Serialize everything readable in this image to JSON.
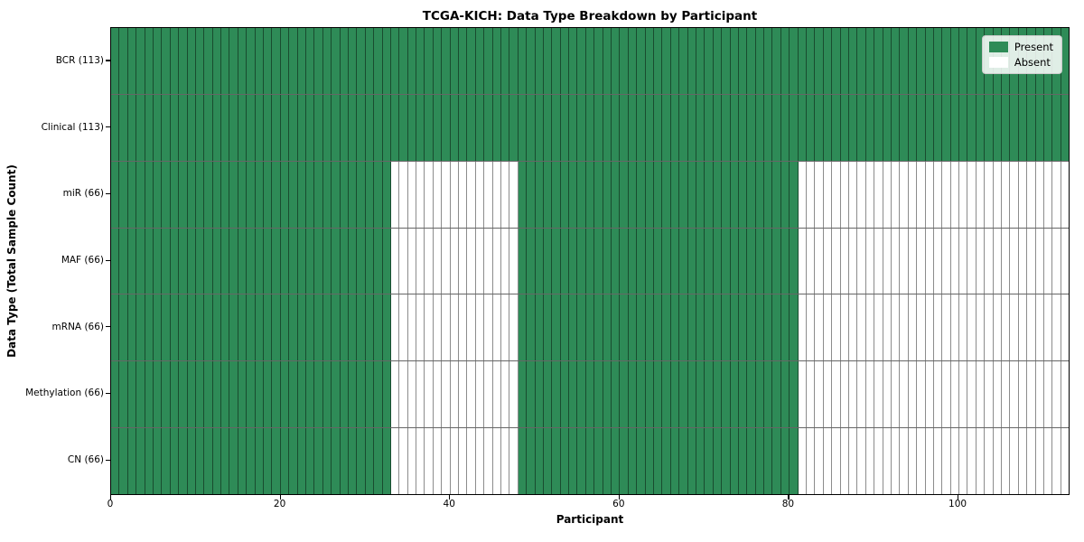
{
  "figure": {
    "title": "TCGA-KICH: Data Type Breakdown by Participant",
    "xlabel": "Participant",
    "ylabel": "Data Type (Total Sample Count)"
  },
  "legend": {
    "items": [
      {
        "label": "Present",
        "color": "#2e8b57"
      },
      {
        "label": "Absent",
        "color": "#ffffff"
      }
    ]
  },
  "chart_data": {
    "type": "heatmap",
    "title": "TCGA-KICH: Data Type Breakdown by Participant",
    "xlabel": "Participant",
    "ylabel": "Data Type (Total Sample Count)",
    "x_range": [
      0,
      113
    ],
    "n_participants": 113,
    "x_ticks": [
      0,
      20,
      40,
      60,
      80,
      100
    ],
    "grid": false,
    "legend_position": "upper right",
    "colors": {
      "present": "#2e8b57",
      "absent": "#ffffff"
    },
    "rows": [
      {
        "label": "BCR (113)",
        "present_count": 113,
        "present_segments": [
          [
            0,
            113
          ]
        ]
      },
      {
        "label": "Clinical (113)",
        "present_count": 113,
        "present_segments": [
          [
            0,
            113
          ]
        ]
      },
      {
        "label": "miR (66)",
        "present_count": 66,
        "present_segments": [
          [
            0,
            33
          ],
          [
            48,
            81
          ]
        ]
      },
      {
        "label": "MAF (66)",
        "present_count": 66,
        "present_segments": [
          [
            0,
            33
          ],
          [
            48,
            81
          ]
        ]
      },
      {
        "label": "mRNA (66)",
        "present_count": 66,
        "present_segments": [
          [
            0,
            33
          ],
          [
            48,
            81
          ]
        ]
      },
      {
        "label": "Methylation (66)",
        "present_count": 66,
        "present_segments": [
          [
            0,
            33
          ],
          [
            48,
            81
          ]
        ]
      },
      {
        "label": "CN (66)",
        "present_count": 66,
        "present_segments": [
          [
            0,
            33
          ],
          [
            48,
            81
          ]
        ]
      }
    ]
  }
}
